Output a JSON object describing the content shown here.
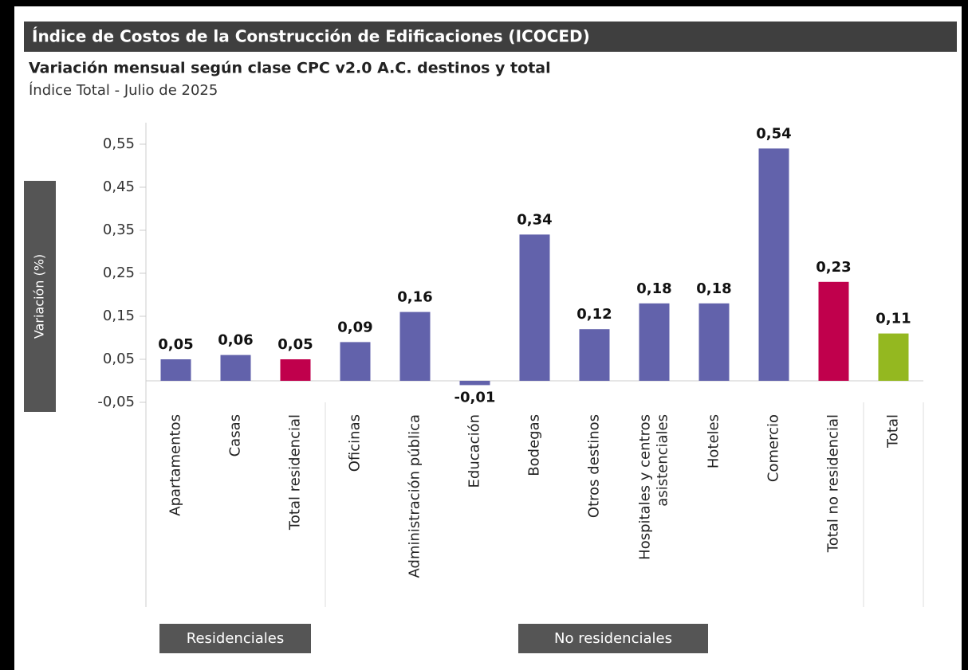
{
  "chart_data": {
    "type": "bar",
    "title": "Índice de Costos de la Construcción de Edificaciones (ICOCED)",
    "subtitle": "Variación mensual según clase CPC v2.0 A.C. destinos y total",
    "caption": "Índice Total - Julio de 2025",
    "y_label": "Variación (%)",
    "categories": [
      "Apartamentos",
      "Casas",
      "Total residencial",
      "Oficinas",
      "Administración pública",
      "Educación",
      "Bodegas",
      "Otros destinos",
      "Hospitales y centros asistenciales",
      "Hoteles",
      "Comercio",
      "Total no residencial",
      "Total"
    ],
    "values": [
      0.05,
      0.06,
      0.05,
      0.09,
      0.16,
      -0.01,
      0.34,
      0.12,
      0.18,
      0.18,
      0.54,
      0.23,
      0.11
    ],
    "value_labels": [
      "0,05",
      "0,06",
      "0,05",
      "0,09",
      "0,16",
      "-0,01",
      "0,34",
      "0,12",
      "0,18",
      "0,18",
      "0,54",
      "0,23",
      "0,11"
    ],
    "colors": [
      "#6262ab",
      "#6262ab",
      "#c0004c",
      "#6262ab",
      "#6262ab",
      "#6262ab",
      "#6262ab",
      "#6262ab",
      "#6262ab",
      "#6262ab",
      "#6262ab",
      "#c0004c",
      "#94b820"
    ],
    "group_labels": [
      "Residenciales",
      "No residenciales"
    ],
    "ylim": [
      -0.05,
      0.6
    ],
    "yticks": [
      {
        "value": -0.05,
        "label": "-0,05"
      },
      {
        "value": 0.05,
        "label": "0,05"
      },
      {
        "value": 0.15,
        "label": "0,15"
      },
      {
        "value": 0.25,
        "label": "0,25"
      },
      {
        "value": 0.35,
        "label": "0,35"
      },
      {
        "value": 0.45,
        "label": "0,45"
      },
      {
        "value": 0.55,
        "label": "0,55"
      }
    ],
    "grid": false
  }
}
